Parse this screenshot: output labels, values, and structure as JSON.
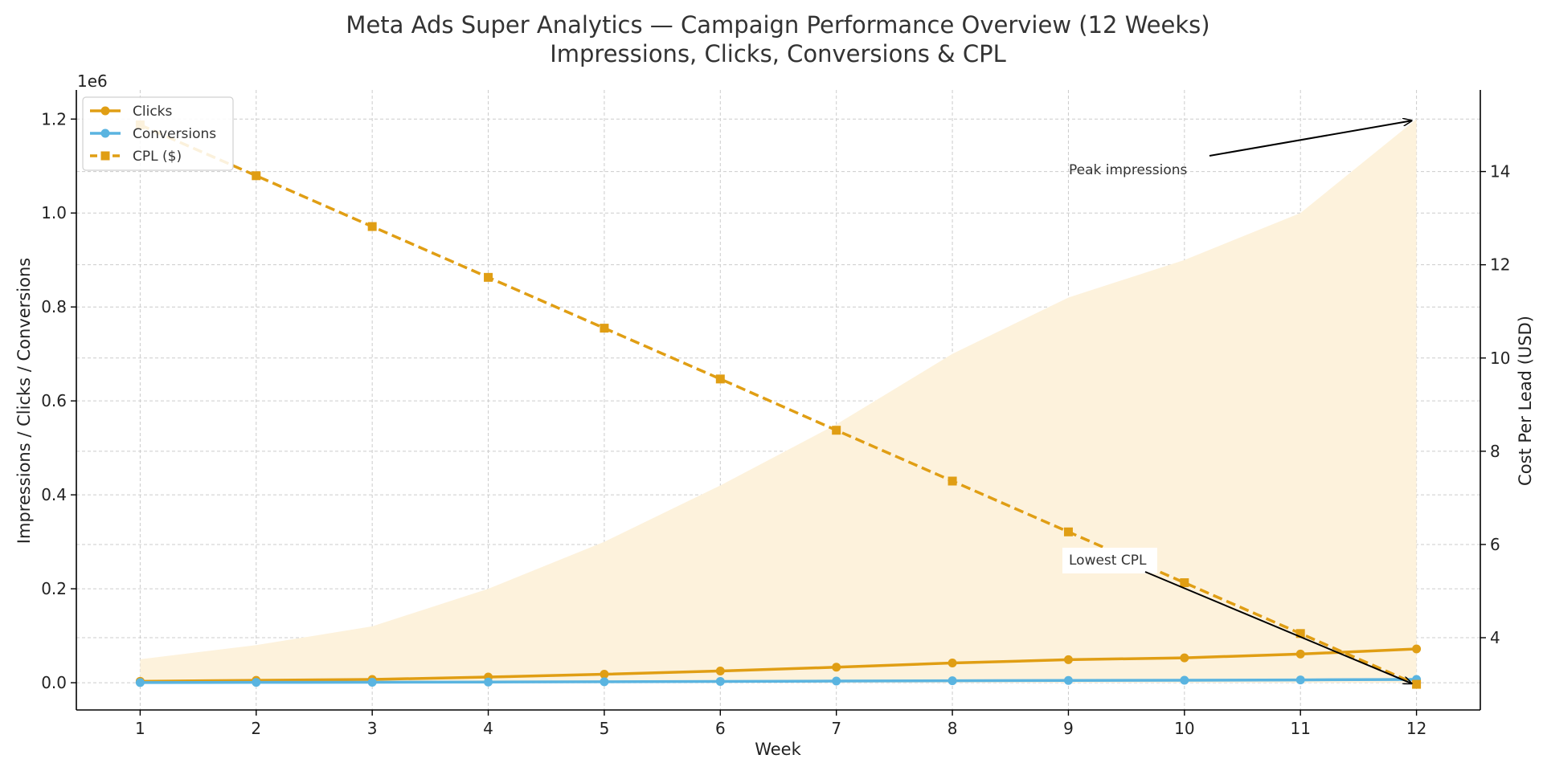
{
  "chart_data": {
    "type": "line",
    "title": "Meta Ads Super Analytics — Campaign Performance Overview (12 Weeks)",
    "subtitle": "Impressions, Clicks, Conversions & CPL",
    "xlabel": "Week",
    "ylabel_left": "Impressions / Clicks / Conversions",
    "ylabel_right": "Cost Per Lead (USD)",
    "left_axis_multiplier": "1e6",
    "x": [
      1,
      2,
      3,
      4,
      5,
      6,
      7,
      8,
      9,
      10,
      11,
      12
    ],
    "x_tick_labels": [
      "1",
      "2",
      "3",
      "4",
      "5",
      "6",
      "7",
      "8",
      "9",
      "10",
      "11",
      "12"
    ],
    "xlim": [
      0.45,
      12.55
    ],
    "ylim_left": [
      -0.058,
      1.262
    ],
    "ylim_right": [
      2.45,
      15.75
    ],
    "left_ticks": [
      0.0,
      0.2,
      0.4,
      0.6,
      0.8,
      1.0,
      1.2
    ],
    "left_tick_labels": [
      "0.0",
      "0.2",
      "0.4",
      "0.6",
      "0.8",
      "1.0",
      "1.2"
    ],
    "right_ticks": [
      4,
      6,
      8,
      10,
      12,
      14
    ],
    "right_tick_labels": [
      "4",
      "6",
      "8",
      "10",
      "12",
      "14"
    ],
    "grid": true,
    "legend_position": "upper-left",
    "series": [
      {
        "name": "Impressions",
        "kind": "area",
        "axis": "left",
        "color": "#fdf2dc",
        "in_legend": false,
        "values": [
          0.05,
          0.08,
          0.12,
          0.2,
          0.3,
          0.42,
          0.55,
          0.7,
          0.82,
          0.9,
          1.0,
          1.2
        ]
      },
      {
        "name": "Clicks",
        "kind": "line",
        "axis": "left",
        "color": "#e09e14",
        "marker": "circle",
        "dash": "solid",
        "in_legend": true,
        "values": [
          0.003,
          0.005,
          0.007,
          0.012,
          0.018,
          0.025,
          0.033,
          0.042,
          0.049,
          0.053,
          0.061,
          0.072
        ]
      },
      {
        "name": "Conversions",
        "kind": "line",
        "axis": "left",
        "color": "#5ab4e0",
        "marker": "circle",
        "dash": "solid",
        "in_legend": true,
        "values": [
          0.0004,
          0.0007,
          0.001,
          0.0015,
          0.002,
          0.0028,
          0.0035,
          0.0042,
          0.0048,
          0.0053,
          0.006,
          0.007
        ]
      },
      {
        "name": "CPL ($)",
        "kind": "line",
        "axis": "right",
        "color": "#e09e14",
        "marker": "square",
        "dash": "dashed",
        "in_legend": true,
        "values": [
          15.0,
          13.91,
          12.82,
          11.73,
          10.64,
          9.55,
          8.45,
          7.36,
          6.27,
          5.18,
          4.09,
          3.0
        ]
      }
    ],
    "annotations": [
      {
        "text": "Peak impressions",
        "point": {
          "x": 12,
          "y": 1.2,
          "axis": "left"
        }
      },
      {
        "text": "Lowest CPL",
        "point": {
          "x": 12,
          "y": 3.0,
          "axis": "right"
        }
      }
    ]
  }
}
